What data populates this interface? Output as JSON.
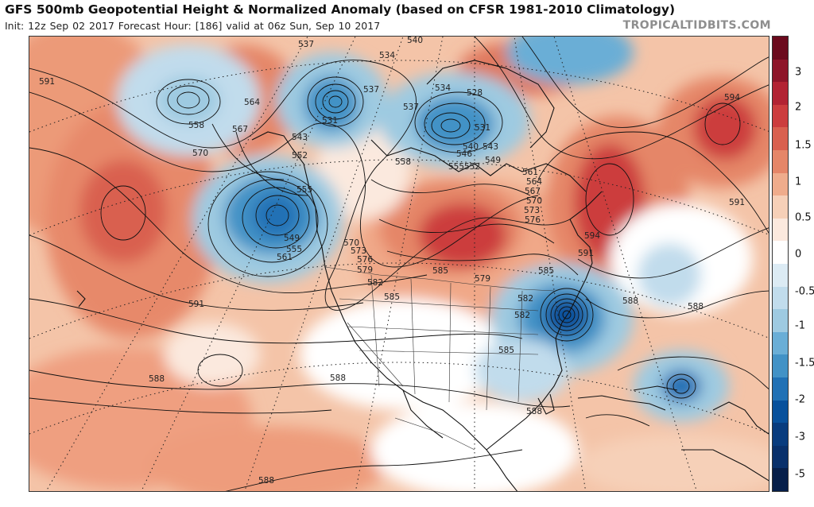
{
  "header": {
    "title": "GFS 500mb Geopotential Height & Normalized Anomaly (based on CFSR 1981-2010 Climatology)",
    "subtitle": "Init: 12z Sep 02 2017   Forecast Hour: [186]   valid at 06z Sun, Sep 10 2017",
    "brand": "TROPICALTIDBITS.COM"
  },
  "colorbar": {
    "ticks": [
      "3",
      "2",
      "1.5",
      "1",
      "0.5",
      "0",
      "-0.5",
      "-1",
      "-1.5",
      "-2",
      "-3",
      "-5"
    ],
    "colors": [
      "#6b0a1d",
      "#8e1529",
      "#b22333",
      "#cc3d3e",
      "#d9604f",
      "#e58668",
      "#efac8c",
      "#f6d0b8",
      "#fbe9de",
      "#ffffff",
      "#dcebf4",
      "#c1dcec",
      "#9ecae1",
      "#6aaed6",
      "#4292c6",
      "#2171b5",
      "#08519c",
      "#083c7e",
      "#08306b",
      "#061f4a"
    ]
  },
  "contour_labels": [
    "591",
    "564",
    "558",
    "567",
    "570",
    "537",
    "534",
    "537",
    "531",
    "543",
    "552",
    "540",
    "534",
    "528",
    "531",
    "540",
    "543",
    "546",
    "549",
    "552",
    "555",
    "558",
    "537",
    "594",
    "591",
    "594",
    "591",
    "555",
    "549",
    "555",
    "561",
    "570",
    "573",
    "576",
    "579",
    "582",
    "585",
    "585",
    "579",
    "585",
    "582",
    "582",
    "585",
    "588",
    "588",
    "588",
    "588",
    "591",
    "588",
    "588",
    "561",
    "564",
    "567",
    "570",
    "573",
    "576"
  ],
  "map": {
    "features": [
      "geopotential-height-contours",
      "normalized-anomaly-shading",
      "coastlines",
      "political-borders",
      "lat-lon-graticule"
    ]
  }
}
